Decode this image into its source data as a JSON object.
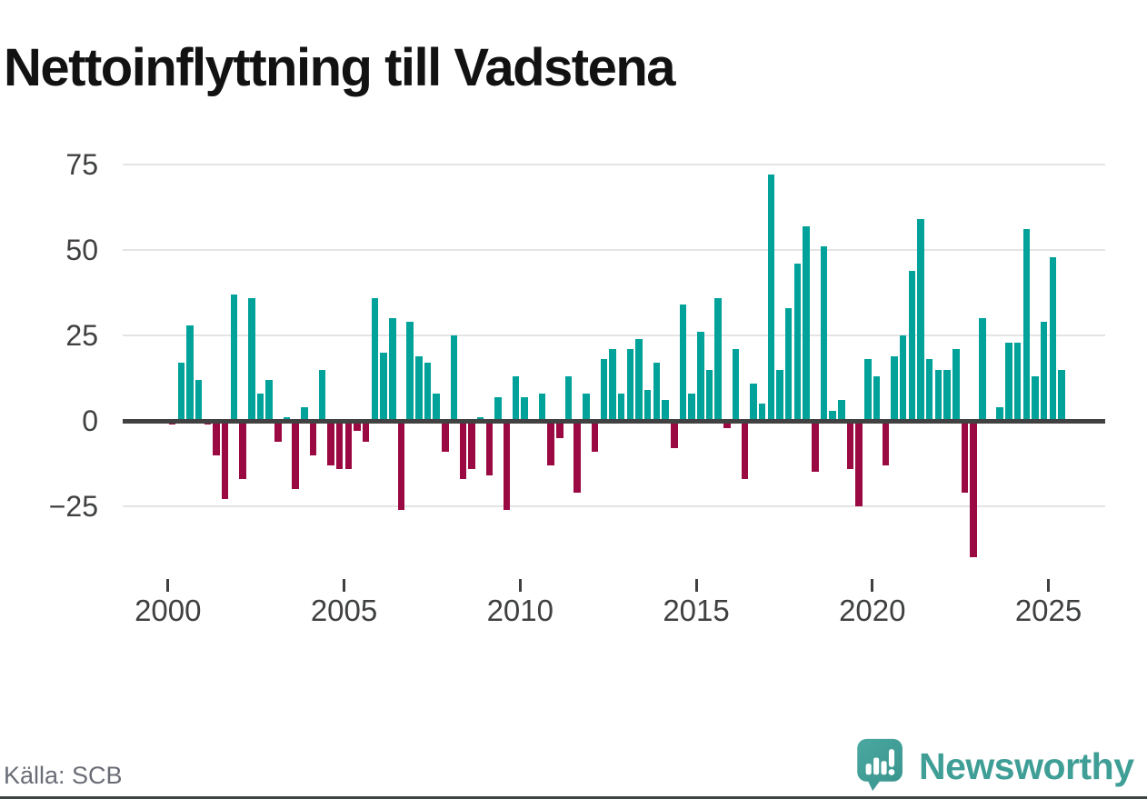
{
  "title": "Nettoinflyttning till Vadstena",
  "source": "Källa: SCB",
  "logo": {
    "text": "Newsworthy"
  },
  "chart_data": {
    "type": "bar",
    "title": "Nettoinflyttning till Vadstena",
    "frequency": "quarterly",
    "grid": true,
    "ylim": [
      -45,
      80
    ],
    "y_ticks": [
      75,
      50,
      25,
      0,
      -25
    ],
    "y_tick_labels": [
      "75",
      "50",
      "25",
      "0",
      "−25"
    ],
    "x_tick_labels": [
      "2000",
      "2005",
      "2010",
      "2015",
      "2020",
      "2025"
    ],
    "colors": {
      "positive": "#00a29a",
      "negative": "#9a0942"
    },
    "quarters": [
      "2000Q1",
      "2000Q2",
      "2000Q3",
      "2000Q4",
      "2001Q1",
      "2001Q2",
      "2001Q3",
      "2001Q4",
      "2002Q1",
      "2002Q2",
      "2002Q3",
      "2002Q4",
      "2003Q1",
      "2003Q2",
      "2003Q3",
      "2003Q4",
      "2004Q1",
      "2004Q2",
      "2004Q3",
      "2004Q4",
      "2005Q1",
      "2005Q2",
      "2005Q3",
      "2005Q4",
      "2006Q1",
      "2006Q2",
      "2006Q3",
      "2006Q4",
      "2007Q1",
      "2007Q2",
      "2007Q3",
      "2007Q4",
      "2008Q1",
      "2008Q2",
      "2008Q3",
      "2008Q4",
      "2009Q1",
      "2009Q2",
      "2009Q3",
      "2009Q4",
      "2010Q1",
      "2010Q2",
      "2010Q3",
      "2010Q4",
      "2011Q1",
      "2011Q2",
      "2011Q3",
      "2011Q4",
      "2012Q1",
      "2012Q2",
      "2012Q3",
      "2012Q4",
      "2013Q1",
      "2013Q2",
      "2013Q3",
      "2013Q4",
      "2014Q1",
      "2014Q2",
      "2014Q3",
      "2014Q4",
      "2015Q1",
      "2015Q2",
      "2015Q3",
      "2015Q4",
      "2016Q1",
      "2016Q2",
      "2016Q3",
      "2016Q4",
      "2017Q1",
      "2017Q2",
      "2017Q3",
      "2017Q4",
      "2018Q1",
      "2018Q2",
      "2018Q3",
      "2018Q4",
      "2019Q1",
      "2019Q2",
      "2019Q3",
      "2019Q4",
      "2020Q1",
      "2020Q2",
      "2020Q3",
      "2020Q4",
      "2021Q1",
      "2021Q2",
      "2021Q3",
      "2021Q4",
      "2022Q1",
      "2022Q2",
      "2022Q3",
      "2022Q4",
      "2023Q1",
      "2023Q2",
      "2023Q3",
      "2023Q4",
      "2024Q1",
      "2024Q2",
      "2024Q3",
      "2024Q4",
      "2025Q1",
      "2025Q2"
    ],
    "values": [
      -1,
      17,
      28,
      12,
      -1,
      -10,
      -23,
      37,
      -17,
      36,
      8,
      12,
      -6,
      1,
      -20,
      4,
      -10,
      15,
      -13,
      -14,
      -14,
      -3,
      -6,
      36,
      20,
      30,
      -26,
      29,
      19,
      17,
      8,
      -9,
      25,
      -17,
      -14,
      1,
      -16,
      7,
      -26,
      13,
      7,
      0,
      8,
      -13,
      -5,
      13,
      -21,
      8,
      -9,
      18,
      21,
      8,
      21,
      24,
      9,
      17,
      6,
      -8,
      34,
      8,
      26,
      15,
      36,
      -2,
      21,
      -17,
      11,
      5,
      72,
      15,
      33,
      46,
      57,
      -15,
      51,
      3,
      6,
      -14,
      -25,
      18,
      13,
      -13,
      19,
      25,
      44,
      59,
      18,
      15,
      15,
      21,
      -21,
      -40,
      30,
      0,
      4,
      23,
      23,
      56,
      13,
      29,
      48,
      15
    ]
  }
}
